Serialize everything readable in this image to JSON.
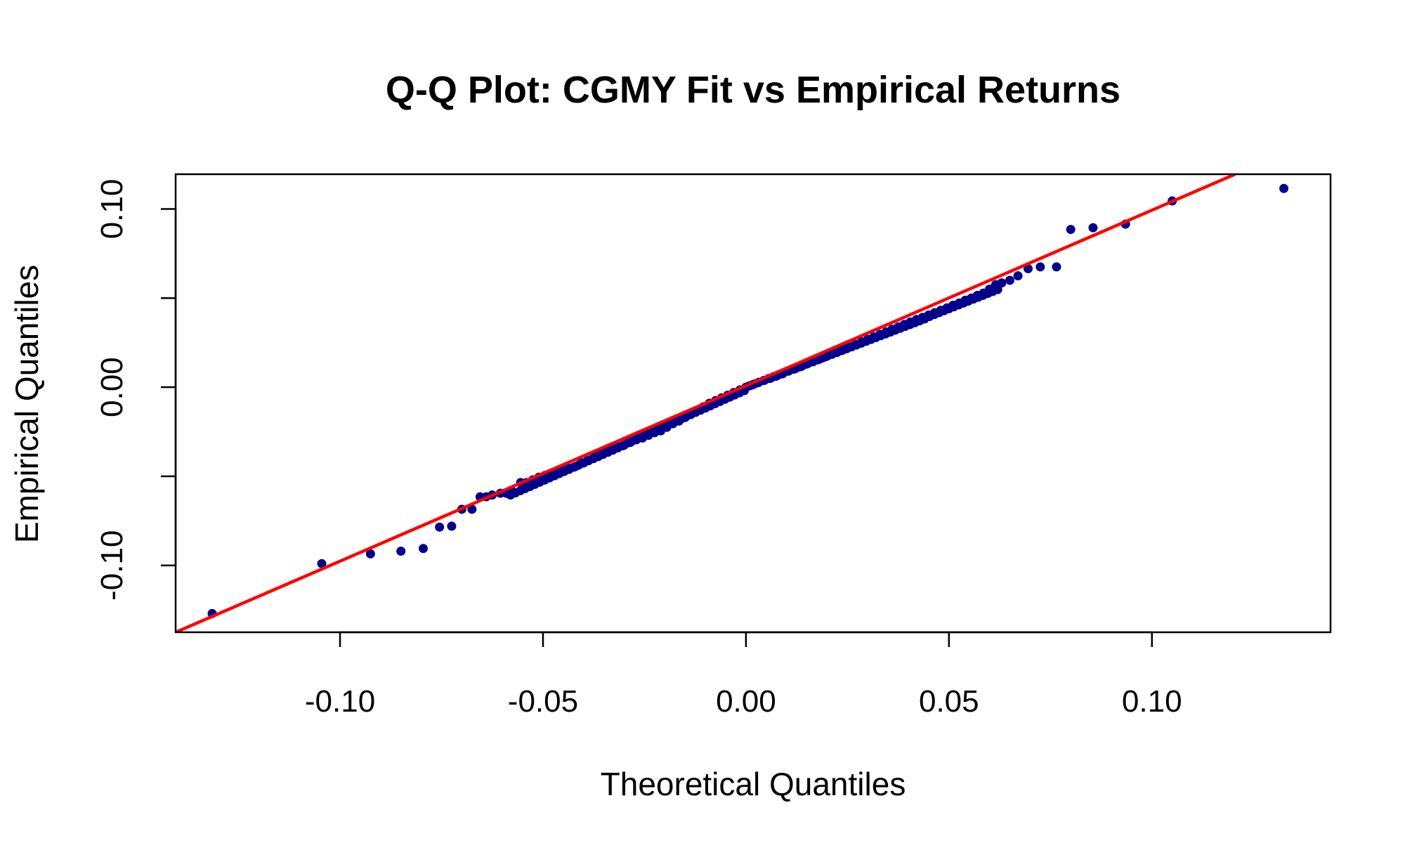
{
  "chart_data": {
    "type": "scatter",
    "title": "Q-Q Plot: CGMY Fit vs Empirical Returns",
    "xlabel": "Theoretical Quantiles",
    "ylabel": "Empirical Quantiles",
    "xlim": [
      -0.1405,
      0.144
    ],
    "ylim": [
      -0.1375,
      0.1195
    ],
    "x_ticks": [
      -0.1,
      -0.05,
      0.0,
      0.05,
      0.1
    ],
    "x_tick_labels": [
      "-0.10",
      "-0.05",
      "0.00",
      "0.05",
      "0.10"
    ],
    "y_ticks": [
      -0.1,
      -0.05,
      0.0,
      0.05,
      0.1
    ],
    "y_tick_labels": [
      "-0.10",
      "",
      "0.00",
      "",
      "0.10"
    ],
    "grid": false,
    "legend": "none",
    "colors": {
      "points": "#00008B",
      "reference_line": "#FF0000",
      "frame": "#000000"
    },
    "series": [
      {
        "type": "scatter",
        "points": [
          [
            -0.1315,
            -0.127
          ],
          [
            -0.1045,
            -0.099
          ],
          [
            -0.0925,
            -0.0935
          ],
          [
            -0.085,
            -0.092
          ],
          [
            -0.0795,
            -0.0905
          ],
          [
            -0.0755,
            -0.0785
          ],
          [
            -0.0725,
            -0.078
          ],
          [
            -0.07,
            -0.0685
          ],
          [
            -0.0675,
            -0.0685
          ],
          [
            -0.0655,
            -0.0615
          ],
          [
            -0.064,
            -0.0615
          ],
          [
            -0.0625,
            -0.0605
          ],
          [
            -0.0605,
            -0.0595
          ],
          [
            -0.059,
            -0.0595
          ],
          [
            -0.0575,
            -0.0585
          ],
          [
            -0.0555,
            -0.0535
          ],
          [
            -0.054,
            -0.0535
          ],
          [
            -0.0525,
            -0.052
          ],
          [
            -0.051,
            -0.0505
          ],
          [
            -0.0495,
            -0.0495
          ],
          [
            -0.048,
            -0.049
          ],
          [
            -0.0465,
            -0.048
          ],
          [
            -0.045,
            -0.0455
          ],
          [
            -0.0435,
            -0.0455
          ],
          [
            -0.042,
            -0.0445
          ],
          [
            -0.0405,
            -0.0425
          ],
          [
            -0.039,
            -0.041
          ],
          [
            -0.0375,
            -0.039
          ],
          [
            -0.036,
            -0.0375
          ],
          [
            -0.0345,
            -0.0355
          ],
          [
            -0.033,
            -0.0345
          ],
          [
            -0.0315,
            -0.0335
          ],
          [
            -0.03,
            -0.0325
          ],
          [
            -0.0285,
            -0.031
          ],
          [
            -0.027,
            -0.0295
          ],
          [
            -0.0255,
            -0.0285
          ],
          [
            -0.024,
            -0.027
          ],
          [
            -0.0225,
            -0.0255
          ],
          [
            -0.021,
            -0.0245
          ],
          [
            -0.0195,
            -0.0225
          ],
          [
            -0.018,
            -0.0205
          ],
          [
            -0.0165,
            -0.019
          ],
          [
            -0.015,
            -0.017
          ],
          [
            -0.0135,
            -0.015
          ],
          [
            -0.012,
            -0.013
          ],
          [
            -0.0105,
            -0.011
          ],
          [
            -0.009,
            -0.009
          ],
          [
            -0.0075,
            -0.0075
          ],
          [
            -0.006,
            -0.006
          ],
          [
            -0.0045,
            -0.0045
          ],
          [
            -0.003,
            -0.003
          ],
          [
            -0.0015,
            -0.0015
          ],
          [
            0.0,
            0.0
          ],
          [
            0.0015,
            0.0012
          ],
          [
            0.003,
            0.0025
          ],
          [
            0.0045,
            0.0038
          ],
          [
            0.006,
            0.005
          ],
          [
            0.0075,
            0.0062
          ],
          [
            0.009,
            0.0075
          ],
          [
            0.0105,
            0.009
          ],
          [
            0.012,
            0.0102
          ],
          [
            0.0135,
            0.0115
          ],
          [
            0.015,
            0.013
          ],
          [
            0.0165,
            0.0143
          ],
          [
            0.018,
            0.0156
          ],
          [
            0.0195,
            0.017
          ],
          [
            0.021,
            0.0185
          ],
          [
            0.0225,
            0.0198
          ],
          [
            0.024,
            0.0212
          ],
          [
            0.0255,
            0.0225
          ],
          [
            0.027,
            0.024
          ],
          [
            0.0285,
            0.0255
          ],
          [
            0.03,
            0.0268
          ],
          [
            0.0315,
            0.0282
          ],
          [
            0.033,
            0.0296
          ],
          [
            0.0345,
            0.031
          ],
          [
            0.036,
            0.0325
          ],
          [
            0.0375,
            0.0338
          ],
          [
            0.039,
            0.0352
          ],
          [
            0.0405,
            0.0366
          ],
          [
            0.042,
            0.038
          ],
          [
            0.0435,
            0.0392
          ],
          [
            0.045,
            0.0405
          ],
          [
            0.0465,
            0.0418
          ],
          [
            0.048,
            0.0432
          ],
          [
            0.0495,
            0.0445
          ],
          [
            0.051,
            0.046
          ],
          [
            0.0525,
            0.0472
          ],
          [
            0.054,
            0.0488
          ],
          [
            0.0555,
            0.05
          ],
          [
            0.057,
            0.0515
          ],
          [
            0.0585,
            0.0528
          ],
          [
            0.06,
            0.055
          ],
          [
            0.0615,
            0.0575
          ],
          [
            0.063,
            0.0585
          ],
          [
            0.065,
            0.06
          ],
          [
            0.067,
            0.0625
          ],
          [
            0.0695,
            0.0665
          ],
          [
            0.0725,
            0.0675
          ],
          [
            0.0765,
            0.0675
          ],
          [
            0.08,
            0.0885
          ],
          [
            0.0855,
            0.0895
          ],
          [
            0.0935,
            0.0915
          ],
          [
            0.105,
            0.1045
          ],
          [
            0.1325,
            0.1115
          ]
        ]
      },
      {
        "type": "line",
        "points": [
          [
            -0.1405,
            -0.1375
          ],
          [
            0.1205,
            0.1195
          ]
        ]
      }
    ]
  }
}
